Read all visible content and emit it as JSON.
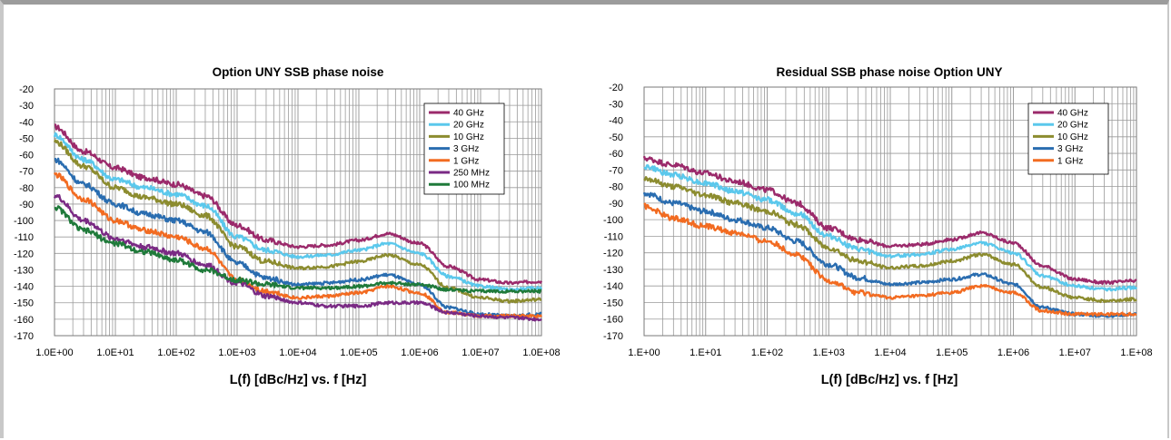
{
  "chart_data": [
    {
      "type": "line",
      "title": "Option UNY SSB phase noise",
      "xlabel": "L(f) [dBc/Hz] vs. f [Hz]",
      "ylabel": "",
      "x_scale": "log",
      "xlim": [
        1,
        100000000
      ],
      "ylim": [
        -170,
        -20
      ],
      "x_tick_labels": [
        "1.0E+00",
        "1.0E+01",
        "1.0E+02",
        "1.0E+03",
        "1.0E+04",
        "1.0E+05",
        "1.0E+06",
        "1.0E+07",
        "1.0E+08"
      ],
      "y_tick_labels": [
        "-20",
        "-30",
        "-40",
        "-50",
        "-60",
        "-70",
        "-80",
        "-90",
        "-100",
        "-110",
        "-120",
        "-130",
        "-140",
        "-150",
        "-160",
        "-170"
      ],
      "grid": true,
      "legend_position": "top-right",
      "x": [
        1,
        3,
        10,
        30,
        100,
        300,
        1000,
        3000,
        10000,
        30000,
        100000,
        300000,
        1000000,
        3000000,
        10000000,
        30000000,
        100000000
      ],
      "series": [
        {
          "name": "40 GHz",
          "color": "#9b2a6b",
          "values": [
            -43,
            -58,
            -68,
            -74,
            -78,
            -85,
            -103,
            -112,
            -116,
            -115,
            -112,
            -108,
            -114,
            -128,
            -136,
            -138,
            -137
          ]
        },
        {
          "name": "20 GHz",
          "color": "#5bc8ec",
          "values": [
            -48,
            -63,
            -75,
            -80,
            -84,
            -91,
            -110,
            -118,
            -122,
            -121,
            -118,
            -114,
            -120,
            -134,
            -140,
            -142,
            -141
          ]
        },
        {
          "name": "10 GHz",
          "color": "#8c8c2f",
          "values": [
            -52,
            -67,
            -80,
            -86,
            -90,
            -97,
            -116,
            -125,
            -129,
            -128,
            -125,
            -121,
            -127,
            -141,
            -147,
            -149,
            -148
          ]
        },
        {
          "name": "3 GHz",
          "color": "#2a6db0",
          "values": [
            -63,
            -78,
            -90,
            -96,
            -100,
            -107,
            -126,
            -135,
            -139,
            -138,
            -136,
            -133,
            -139,
            -153,
            -157,
            -158,
            -157
          ]
        },
        {
          "name": "1 GHz",
          "color": "#f26b21",
          "values": [
            -72,
            -87,
            -100,
            -106,
            -110,
            -117,
            -136,
            -143,
            -147,
            -146,
            -144,
            -140,
            -144,
            -156,
            -158,
            -158,
            -158
          ]
        },
        {
          "name": "250 MHz",
          "color": "#7a2a84",
          "values": [
            -85,
            -100,
            -111,
            -116,
            -120,
            -127,
            -138,
            -146,
            -150,
            -152,
            -152,
            -150,
            -150,
            -156,
            -158,
            -159,
            -160
          ]
        },
        {
          "name": "100 MHz",
          "color": "#1f7a3a",
          "values": [
            -92,
            -106,
            -114,
            -119,
            -124,
            -130,
            -136,
            -139,
            -141,
            -141,
            -140,
            -138,
            -139,
            -142,
            -143,
            -143,
            -143
          ]
        }
      ]
    },
    {
      "type": "line",
      "title": "Residual SSB phase noise Option UNY",
      "xlabel": "L(f) [dBc/Hz] vs. f [Hz]",
      "ylabel": "",
      "x_scale": "log",
      "xlim": [
        1,
        100000000
      ],
      "ylim": [
        -170,
        -20
      ],
      "x_tick_labels": [
        "1.E+00",
        "1.E+01",
        "1.E+02",
        "1.E+03",
        "1.E+04",
        "1.E+05",
        "1.E+06",
        "1.E+07",
        "1.E+08"
      ],
      "y_tick_labels": [
        "-20",
        "-30",
        "-40",
        "-50",
        "-60",
        "-70",
        "-80",
        "-90",
        "-100",
        "-110",
        "-120",
        "-130",
        "-140",
        "-150",
        "-160",
        "-170"
      ],
      "grid": true,
      "legend_position": "top-right",
      "x": [
        1,
        3,
        10,
        30,
        100,
        300,
        1000,
        3000,
        10000,
        30000,
        100000,
        300000,
        1000000,
        3000000,
        10000000,
        30000000,
        100000000
      ],
      "series": [
        {
          "name": "40 GHz",
          "color": "#9b2a6b",
          "values": [
            -63,
            -67,
            -72,
            -77,
            -82,
            -90,
            -105,
            -112,
            -116,
            -115,
            -112,
            -108,
            -114,
            -128,
            -136,
            -138,
            -137
          ]
        },
        {
          "name": "20 GHz",
          "color": "#5bc8ec",
          "values": [
            -68,
            -73,
            -78,
            -83,
            -88,
            -96,
            -110,
            -118,
            -122,
            -121,
            -118,
            -114,
            -120,
            -134,
            -140,
            -142,
            -141
          ]
        },
        {
          "name": "10 GHz",
          "color": "#8c8c2f",
          "values": [
            -75,
            -80,
            -85,
            -90,
            -95,
            -103,
            -117,
            -125,
            -129,
            -128,
            -125,
            -121,
            -127,
            -141,
            -147,
            -149,
            -148
          ]
        },
        {
          "name": "3 GHz",
          "color": "#2a6db0",
          "values": [
            -84,
            -90,
            -95,
            -100,
            -105,
            -113,
            -127,
            -135,
            -139,
            -138,
            -136,
            -133,
            -139,
            -153,
            -157,
            -158,
            -157
          ]
        },
        {
          "name": "1 GHz",
          "color": "#f26b21",
          "values": [
            -92,
            -99,
            -104,
            -108,
            -113,
            -121,
            -137,
            -144,
            -147,
            -146,
            -144,
            -140,
            -144,
            -155,
            -157,
            -157,
            -157
          ]
        }
      ]
    }
  ]
}
